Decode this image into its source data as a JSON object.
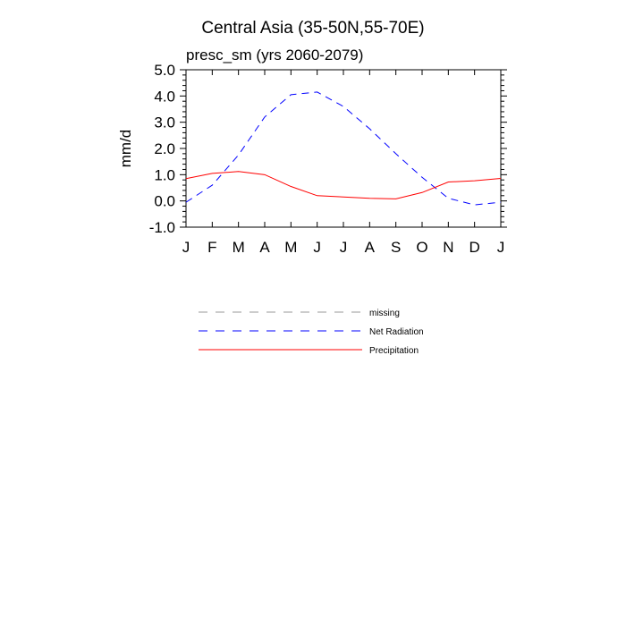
{
  "chart_data": {
    "type": "line",
    "title": "Central Asia (35-50N,55-70E)",
    "subtitle": "presc_sm (yrs 2060-2079)",
    "xlabel": "",
    "ylabel": "mm/d",
    "categories": [
      "J",
      "F",
      "M",
      "A",
      "M",
      "J",
      "J",
      "A",
      "S",
      "O",
      "N",
      "D",
      "J"
    ],
    "ylim": [
      -1.0,
      5.0
    ],
    "yticks": [
      "5.0",
      "4.0",
      "3.0",
      "2.0",
      "1.0",
      "0.0",
      "-1.0"
    ],
    "ytick_values": [
      5.0,
      4.0,
      3.0,
      2.0,
      1.0,
      0.0,
      -1.0
    ],
    "grid": false,
    "legend_position": "below",
    "series": [
      {
        "name": "Net Radiation",
        "style": "dashed",
        "color": "#0000ff",
        "values": [
          -0.05,
          0.6,
          1.75,
          3.2,
          4.05,
          4.15,
          3.6,
          2.75,
          1.8,
          0.9,
          0.1,
          -0.15,
          -0.05
        ]
      },
      {
        "name": "Precipitation",
        "style": "solid",
        "color": "#ff0000",
        "values": [
          0.85,
          1.05,
          1.12,
          1.0,
          0.55,
          0.2,
          0.15,
          0.1,
          0.08,
          0.32,
          0.72,
          0.77,
          0.86
        ]
      }
    ],
    "legend": [
      {
        "label": "missing",
        "color": "#999999",
        "style": "dashed"
      },
      {
        "label": "Net Radiation",
        "color": "#0000ff",
        "style": "dashed"
      },
      {
        "label": "Precipitation",
        "color": "#ff0000",
        "style": "solid"
      }
    ]
  }
}
